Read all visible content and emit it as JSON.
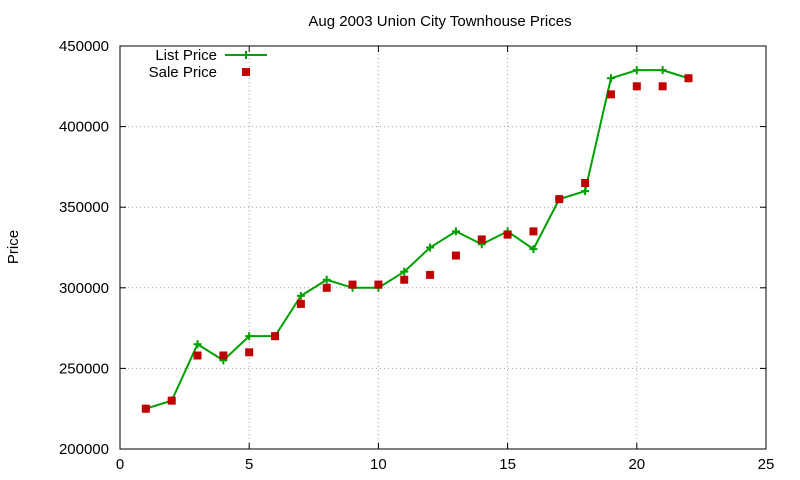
{
  "chart_data": {
    "type": "line",
    "title": "Aug 2003 Union City Townhouse Prices",
    "xlabel": "",
    "ylabel": "Price",
    "xlim": [
      0,
      25
    ],
    "ylim": [
      200000,
      450000
    ],
    "xticks": [
      0,
      5,
      10,
      15,
      20,
      25
    ],
    "yticks": [
      200000,
      250000,
      300000,
      350000,
      400000,
      450000
    ],
    "grid": true,
    "legend_position": "top-left",
    "series": [
      {
        "name": "List Price",
        "style": "line-with-plus-markers",
        "color": "#00a000",
        "x": [
          1,
          2,
          3,
          4,
          5,
          6,
          7,
          8,
          9,
          10,
          11,
          12,
          13,
          14,
          15,
          16,
          17,
          18,
          19,
          20,
          21,
          22
        ],
        "y": [
          225000,
          230000,
          265000,
          255000,
          270000,
          270000,
          295000,
          305000,
          300000,
          300000,
          310000,
          325000,
          335000,
          327000,
          335000,
          324000,
          355000,
          360000,
          430000,
          435000,
          435000,
          430000
        ]
      },
      {
        "name": "Sale Price",
        "style": "square-markers",
        "color": "#c00000",
        "x": [
          1,
          2,
          3,
          4,
          5,
          6,
          7,
          8,
          9,
          10,
          11,
          12,
          13,
          14,
          15,
          16,
          17,
          18,
          19,
          20,
          21,
          22
        ],
        "y": [
          225000,
          230000,
          258000,
          258000,
          260000,
          270000,
          290000,
          300000,
          302000,
          302000,
          305000,
          308000,
          320000,
          330000,
          333000,
          335000,
          355000,
          365000,
          420000,
          425000,
          425000,
          430000
        ]
      }
    ]
  }
}
